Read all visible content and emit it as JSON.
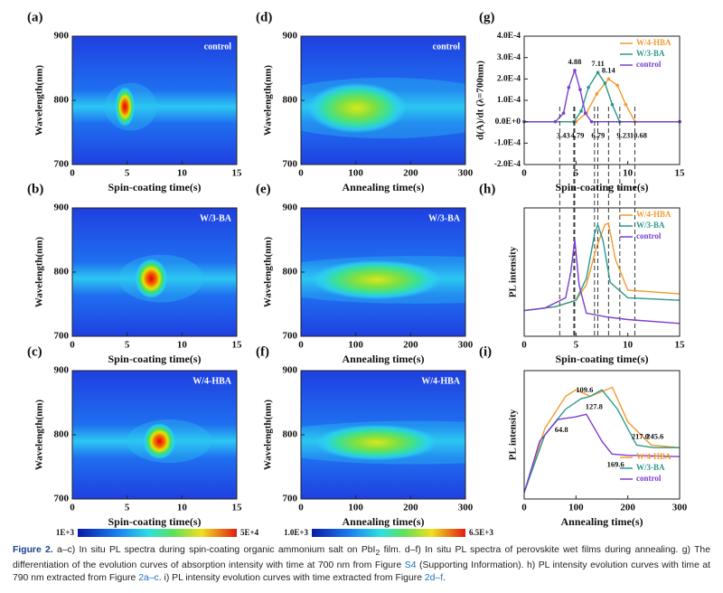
{
  "chart_data": [
    {
      "type": "heatmap",
      "panel": "(a)",
      "label": "control",
      "xlabel": "Spin-coating time(s)",
      "ylabel": "Wavelength(nm)",
      "xlim": [
        0,
        15
      ],
      "ylim": [
        700,
        900
      ],
      "xticks": [
        0,
        5,
        10,
        15
      ],
      "yticks": [
        700,
        800,
        900
      ]
    },
    {
      "type": "heatmap",
      "panel": "(b)",
      "label": "W/3-BA",
      "xlabel": "Spin-coating time(s)",
      "ylabel": "Wavelength(nm)",
      "xlim": [
        0,
        15
      ],
      "ylim": [
        700,
        900
      ],
      "xticks": [
        0,
        5,
        10,
        15
      ],
      "yticks": [
        700,
        800,
        900
      ]
    },
    {
      "type": "heatmap",
      "panel": "(c)",
      "label": "W/4-HBA",
      "xlabel": "Spin-coating time(s)",
      "ylabel": "Wavelength(nm)",
      "xlim": [
        0,
        15
      ],
      "ylim": [
        700,
        900
      ],
      "xticks": [
        0,
        5,
        10,
        15
      ],
      "yticks": [
        700,
        800,
        900
      ]
    },
    {
      "type": "heatmap",
      "panel": "(d)",
      "label": "control",
      "xlabel": "Annealing time(s)",
      "ylabel": "Wavelength(nm)",
      "xlim": [
        0,
        300
      ],
      "ylim": [
        700,
        900
      ],
      "xticks": [
        0,
        100,
        200,
        300
      ],
      "yticks": [
        700,
        800,
        900
      ]
    },
    {
      "type": "heatmap",
      "panel": "(e)",
      "label": "W/3-BA",
      "xlabel": "Annealing time(s)",
      "ylabel": "Wavelength(nm)",
      "xlim": [
        0,
        300
      ],
      "ylim": [
        700,
        900
      ],
      "xticks": [
        0,
        100,
        200,
        300
      ],
      "yticks": [
        700,
        800,
        900
      ]
    },
    {
      "type": "heatmap",
      "panel": "(f)",
      "label": "W/4-HBA",
      "xlabel": "Annealing time(s)",
      "ylabel": "Wavelength(nm)",
      "xlim": [
        0,
        300
      ],
      "ylim": [
        700,
        900
      ],
      "xticks": [
        0,
        100,
        200,
        300
      ],
      "yticks": [
        700,
        800,
        900
      ]
    },
    {
      "type": "line",
      "panel": "(g)",
      "xlabel": "Spin-coating time(s)",
      "ylabel": "d(A)/dt (λ=700nm)",
      "xlim": [
        0,
        15
      ],
      "ylim": [
        -0.0002,
        0.0004
      ],
      "xticks": [
        0,
        5,
        10,
        15
      ],
      "yticks": [
        {
          "value": -0.0002,
          "label": "-2.0E-4"
        },
        {
          "value": -0.0001,
          "label": "-1.0E-4"
        },
        {
          "value": 0,
          "label": "0.0E+0"
        },
        {
          "value": 0.0001,
          "label": "1.0E-4"
        },
        {
          "value": 0.0002,
          "label": "2.0E-4"
        },
        {
          "value": 0.0003,
          "label": "3.0E-4"
        },
        {
          "value": 0.0004,
          "label": "4.0E-4"
        }
      ],
      "legend": "top-right",
      "markers": true,
      "series": [
        {
          "name": "W/4-HBA",
          "color": "#f39a2e",
          "x": [
            0,
            5,
            6,
            7,
            8.14,
            9,
            9.8,
            10.7,
            15
          ],
          "values": [
            0,
            0,
            4e-05,
            0.00013,
            0.0002,
            0.00017,
            8e-05,
            0,
            0
          ]
        },
        {
          "name": "W/3-BA",
          "color": "#2c998b",
          "x": [
            0,
            4.8,
            5.5,
            6.2,
            7.11,
            7.8,
            8.5,
            9.2,
            15
          ],
          "values": [
            0,
            0,
            5e-05,
            0.00016,
            0.00023,
            0.00018,
            8e-05,
            0,
            0
          ]
        },
        {
          "name": "control",
          "color": "#7a3fd0",
          "x": [
            0,
            3,
            3.8,
            4.3,
            4.88,
            5.4,
            5.9,
            6.5,
            15
          ],
          "values": [
            0,
            0,
            4e-05,
            0.00016,
            0.00024,
            0.00015,
            4e-05,
            0,
            0
          ]
        }
      ],
      "annotations": [
        4.88,
        7.11,
        8.14,
        3.43,
        4.79,
        6.79,
        9.23,
        10.68
      ]
    },
    {
      "type": "line",
      "panel": "(h)",
      "xlabel": "Spin-coating time(s)",
      "ylabel": "PL intensity",
      "xlim": [
        0,
        15
      ],
      "ylim": [
        0,
        1
      ],
      "xticks": [
        0,
        5,
        10,
        15
      ],
      "yticks": [],
      "legend": "top-right",
      "series": [
        {
          "name": "W/4-HBA",
          "color": "#f39a2e",
          "x": [
            0,
            3,
            5,
            6,
            7,
            7.8,
            8.14,
            8.8,
            10,
            15
          ],
          "values": [
            0.2,
            0.23,
            0.28,
            0.4,
            0.7,
            0.87,
            0.88,
            0.6,
            0.36,
            0.33
          ]
        },
        {
          "name": "W/3-BA",
          "color": "#2c998b",
          "x": [
            0,
            3,
            5,
            6,
            6.8,
            7.11,
            7.6,
            8.3,
            10,
            15
          ],
          "values": [
            0.2,
            0.23,
            0.28,
            0.45,
            0.8,
            0.87,
            0.75,
            0.42,
            0.3,
            0.28
          ]
        },
        {
          "name": "control",
          "color": "#7a3fd0",
          "x": [
            0,
            2,
            4,
            4.5,
            4.88,
            5.3,
            6,
            8,
            10,
            15
          ],
          "values": [
            0.2,
            0.22,
            0.3,
            0.5,
            0.75,
            0.4,
            0.18,
            0.15,
            0.13,
            0.1
          ]
        }
      ]
    },
    {
      "type": "line",
      "panel": "(i)",
      "xlabel": "Annealing time(s)",
      "ylabel": "PL intensity",
      "xlim": [
        0,
        300
      ],
      "ylim": [
        0,
        1
      ],
      "xticks": [
        0,
        100,
        200,
        300
      ],
      "yticks": [],
      "legend": "bottom-right",
      "series": [
        {
          "name": "W/4-HBA",
          "color": "#f39a2e",
          "x": [
            0,
            40,
            80,
            100,
            127.8,
            170,
            200,
            245.6,
            300
          ],
          "values": [
            0.05,
            0.55,
            0.8,
            0.85,
            0.8,
            0.87,
            0.6,
            0.42,
            0.4
          ]
        },
        {
          "name": "W/3-BA",
          "color": "#2c998b",
          "x": [
            0,
            40,
            80,
            109.6,
            127.8,
            150,
            180,
            217,
            250,
            300
          ],
          "values": [
            0.05,
            0.5,
            0.7,
            0.78,
            0.8,
            0.85,
            0.7,
            0.42,
            0.4,
            0.4
          ]
        },
        {
          "name": "control",
          "color": "#7a3fd0",
          "x": [
            0,
            30,
            64.8,
            100,
            120,
            150,
            169.6,
            200,
            300
          ],
          "values": [
            0.05,
            0.45,
            0.62,
            0.64,
            0.66,
            0.45,
            0.35,
            0.34,
            0.33
          ]
        }
      ],
      "annotations": [
        109.6,
        127.8,
        245.6,
        64.8,
        {
          "value": 217,
          "label": "217.0"
        },
        169.6
      ]
    }
  ],
  "colorbars": [
    {
      "min_label": "1E+3",
      "max_label": "5E+4"
    },
    {
      "min_label": "1.0E+3",
      "max_label": "6.5E+3"
    }
  ],
  "caption": {
    "label": "Figure 2.",
    "parts": [
      " a–c) In situ PL spectra during spin-coating organic ammonium salt on PbI",
      "2",
      " film. d–f) In situ PL spectra of perovskite wet films during annealing. g) The differentiation of the evolution curves of absorption intensity with time at 700 nm from Figure ",
      "S4",
      " (Supporting Information). h) PL intensity evolution curves with time at 790 nm extracted from Figure ",
      "2a–c",
      ". i) PL intensity evolution curves with time extracted from Figure ",
      "2d–f",
      "."
    ]
  }
}
